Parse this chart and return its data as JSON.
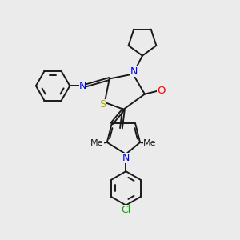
{
  "background_color": "#ebebeb",
  "bond_color": "#1a1a1a",
  "atom_colors": {
    "N": "#0000ee",
    "S": "#aaaa00",
    "O": "#ff0000",
    "Cl": "#00aa00",
    "C": "#1a1a1a"
  },
  "lw": 1.4,
  "fs": 8.5,
  "xlim": [
    0,
    10
  ],
  "ylim": [
    0,
    10
  ]
}
